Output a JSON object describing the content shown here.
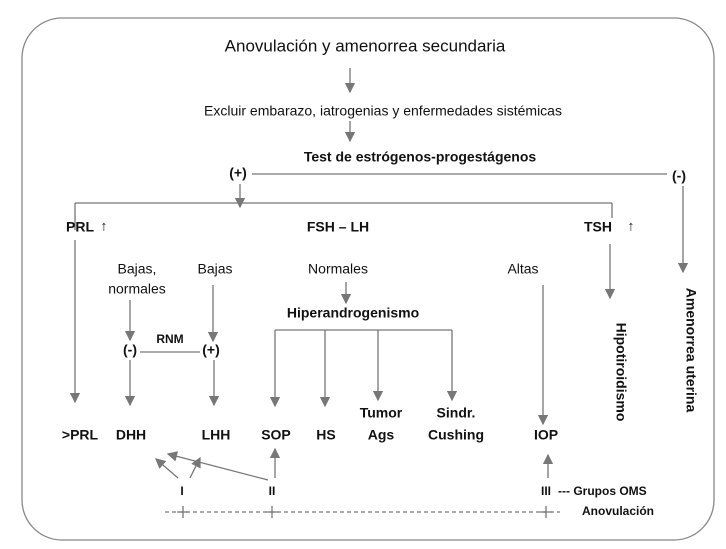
{
  "title": "Anovulación y amenorrea secundaria",
  "steps": [
    "Excluir embarazo, iatrogenias y enfermedades sistémicas",
    "Test de estrógenos-progestágenos"
  ],
  "test_results": {
    "positive": "(+)",
    "negative": "(-)"
  },
  "hormones": {
    "prl": "PRL",
    "fsh_lh": "FSH – LH",
    "tsh": "TSH",
    "elevated": "↑"
  },
  "fsh_lh_levels": {
    "low_normal": [
      "Bajas,",
      "normales"
    ],
    "low": "Bajas",
    "normal": "Normales",
    "high": "Altas"
  },
  "rnm": {
    "label": "RNM",
    "negative": "(-)",
    "positive": "(+)"
  },
  "hyperandrogenism": "Hiperandrogenismo",
  "diagnoses": {
    "prl": ">PRL",
    "dhh": "DHH",
    "lhh": "LHH",
    "sop": "SOP",
    "hs": "HS",
    "tumor": [
      "Tumor",
      "Ags"
    ],
    "cushing": [
      "Sindr.",
      "Cushing"
    ],
    "iop": "IOP"
  },
  "side_outcomes": {
    "uterine": "Amenorrea uterina",
    "thyroid": "Hipotiroidismo"
  },
  "who_groups": {
    "i": "I",
    "ii": "II",
    "iii": "III",
    "label": "--- Grupos OMS"
  },
  "anovulation": "Anovulación"
}
